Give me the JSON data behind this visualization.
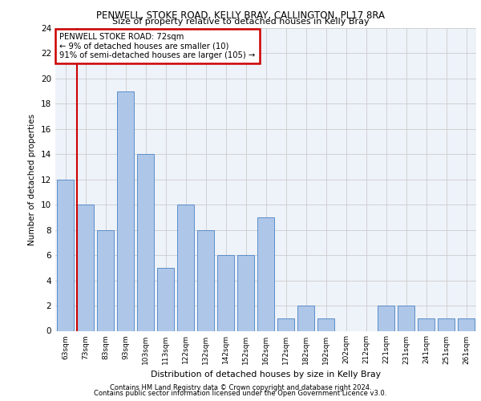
{
  "title": "PENWELL, STOKE ROAD, KELLY BRAY, CALLINGTON, PL17 8RA",
  "subtitle": "Size of property relative to detached houses in Kelly Bray",
  "xlabel": "Distribution of detached houses by size in Kelly Bray",
  "ylabel": "Number of detached properties",
  "categories": [
    "63sqm",
    "73sqm",
    "83sqm",
    "93sqm",
    "103sqm",
    "113sqm",
    "122sqm",
    "132sqm",
    "142sqm",
    "152sqm",
    "162sqm",
    "172sqm",
    "182sqm",
    "192sqm",
    "202sqm",
    "212sqm",
    "221sqm",
    "231sqm",
    "241sqm",
    "251sqm",
    "261sqm"
  ],
  "bar_values": [
    12,
    10,
    8,
    19,
    14,
    5,
    10,
    8,
    6,
    6,
    9,
    1,
    2,
    1,
    0,
    0,
    2,
    2,
    1,
    1,
    1
  ],
  "bar_color": "#aec6e8",
  "bar_edgecolor": "#5b8fc9",
  "red_line_x": 1,
  "annotation_text": "PENWELL STOKE ROAD: 72sqm\n← 9% of detached houses are smaller (10)\n91% of semi-detached houses are larger (105) →",
  "annotation_box_color": "#ffffff",
  "annotation_box_edgecolor": "#cc0000",
  "ylim": [
    0,
    24
  ],
  "yticks": [
    0,
    2,
    4,
    6,
    8,
    10,
    12,
    14,
    16,
    18,
    20,
    22,
    24
  ],
  "grid_color": "#cccccc",
  "bg_color": "#eef2f9",
  "footer1": "Contains HM Land Registry data © Crown copyright and database right 2024.",
  "footer2": "Contains public sector information licensed under the Open Government Licence v3.0."
}
